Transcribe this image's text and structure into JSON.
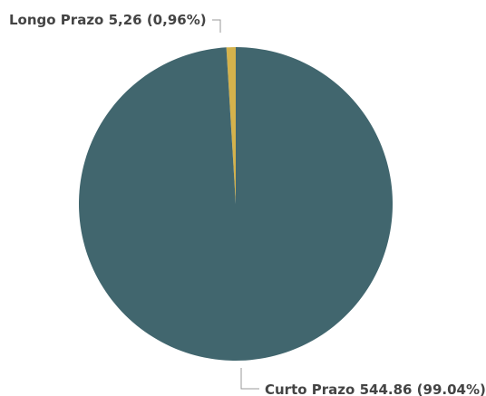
{
  "chart_data": {
    "type": "pie",
    "categories": [
      "Longo Prazo",
      "Curto Prazo"
    ],
    "values": [
      5.26,
      544.86
    ],
    "value_labels": [
      "5,26 (0,96%)",
      "544.86 (99.04%)"
    ],
    "colors": [
      "#d4b24c",
      "#41666e"
    ]
  }
}
